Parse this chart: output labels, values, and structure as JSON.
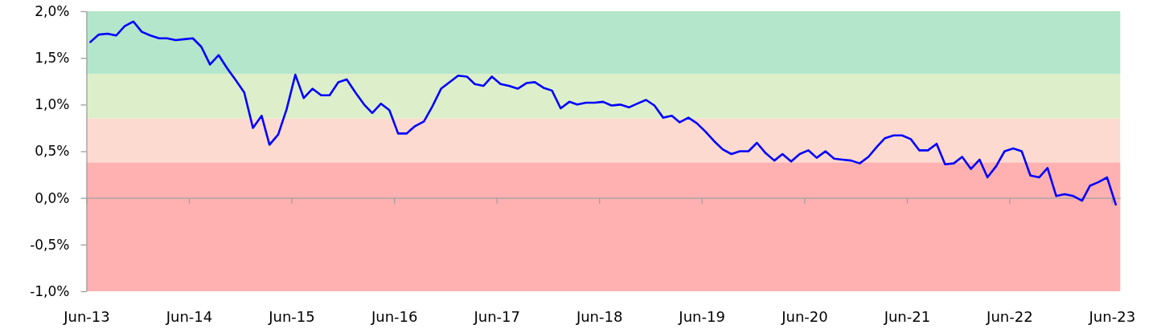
{
  "chart_data": {
    "type": "line",
    "x": [
      "2013-06-15",
      "2013-07-15",
      "2013-08-15",
      "2013-09-15",
      "2013-10-15",
      "2013-11-15",
      "2013-12-15",
      "2014-01-15",
      "2014-02-15",
      "2014-03-15",
      "2014-04-15",
      "2014-05-15",
      "2014-06-15",
      "2014-07-15",
      "2014-08-15",
      "2014-09-15",
      "2014-10-15",
      "2014-11-15",
      "2014-12-15",
      "2015-01-15",
      "2015-02-15",
      "2015-03-15",
      "2015-04-15",
      "2015-05-15",
      "2015-06-15",
      "2015-07-15",
      "2015-08-15",
      "2015-09-15",
      "2015-10-15",
      "2015-11-15",
      "2015-12-15",
      "2016-01-15",
      "2016-02-15",
      "2016-03-15",
      "2016-04-15",
      "2016-05-15",
      "2016-06-15",
      "2016-07-15",
      "2016-08-15",
      "2016-09-15",
      "2016-10-15",
      "2016-11-15",
      "2016-12-15",
      "2017-01-15",
      "2017-02-15",
      "2017-03-15",
      "2017-04-15",
      "2017-05-15",
      "2017-06-15",
      "2017-07-15",
      "2017-08-15",
      "2017-09-15",
      "2017-10-15",
      "2017-11-15",
      "2017-12-15",
      "2018-01-15",
      "2018-02-15",
      "2018-03-15",
      "2018-04-15",
      "2018-05-15",
      "2018-06-15",
      "2018-07-15",
      "2018-08-15",
      "2018-09-15",
      "2018-10-15",
      "2018-11-15",
      "2018-12-15",
      "2019-01-15",
      "2019-02-15",
      "2019-03-15",
      "2019-04-15",
      "2019-05-15",
      "2019-06-15",
      "2019-07-15",
      "2019-08-15",
      "2019-09-15",
      "2019-10-15",
      "2019-11-15",
      "2019-12-15",
      "2020-01-15",
      "2020-02-15",
      "2020-03-15",
      "2020-04-15",
      "2020-05-15",
      "2020-06-15",
      "2020-07-15",
      "2020-08-15",
      "2020-09-15",
      "2020-10-15",
      "2020-11-15",
      "2020-12-15",
      "2021-01-15",
      "2021-02-15",
      "2021-03-15",
      "2021-04-15",
      "2021-05-15",
      "2021-06-15",
      "2021-07-15",
      "2021-08-15",
      "2021-09-15",
      "2021-10-15",
      "2021-11-15",
      "2021-12-15",
      "2022-01-15",
      "2022-02-15",
      "2022-03-15",
      "2022-04-15",
      "2022-05-15",
      "2022-06-15",
      "2022-07-15",
      "2022-08-15",
      "2022-09-15",
      "2022-10-15",
      "2022-11-15",
      "2022-12-15",
      "2023-01-15",
      "2023-02-15",
      "2023-03-15",
      "2023-04-15",
      "2023-05-15",
      "2023-06-15"
    ],
    "series": [
      {
        "color": "#0000ff",
        "values": [
          1.67,
          1.75,
          1.76,
          1.74,
          1.84,
          1.89,
          1.78,
          1.74,
          1.71,
          1.71,
          1.69,
          1.7,
          1.71,
          1.62,
          1.43,
          1.53,
          1.39,
          1.26,
          1.13,
          0.75,
          0.88,
          0.57,
          0.68,
          0.95,
          1.32,
          1.07,
          1.17,
          1.1,
          1.1,
          1.24,
          1.27,
          1.13,
          1.0,
          0.91,
          1.01,
          0.94,
          0.69,
          0.69,
          0.77,
          0.82,
          0.98,
          1.17,
          1.24,
          1.31,
          1.3,
          1.22,
          1.2,
          1.3,
          1.22,
          1.2,
          1.17,
          1.23,
          1.24,
          1.18,
          1.15,
          0.96,
          1.03,
          1.0,
          1.02,
          1.02,
          1.03,
          0.99,
          1.0,
          0.97,
          1.01,
          1.05,
          0.99,
          0.86,
          0.88,
          0.81,
          0.86,
          0.8,
          0.71,
          0.61,
          0.52,
          0.47,
          0.5,
          0.5,
          0.59,
          0.48,
          0.4,
          0.47,
          0.39,
          0.47,
          0.51,
          0.43,
          0.5,
          0.42,
          0.41,
          0.4,
          0.37,
          0.44,
          0.55,
          0.64,
          0.67,
          0.67,
          0.63,
          0.51,
          0.51,
          0.58,
          0.36,
          0.37,
          0.44,
          0.31,
          0.41,
          0.22,
          0.34,
          0.5,
          0.53,
          0.5,
          0.24,
          0.22,
          0.32,
          0.02,
          0.04,
          0.02,
          -0.03,
          0.13,
          0.17,
          0.22,
          -0.07
        ]
      }
    ],
    "xlim": [
      "2013-06-01",
      "2023-07-01"
    ],
    "xticks": [
      {
        "value": "2013-06-01",
        "label": "Jun-13"
      },
      {
        "value": "2014-06-01",
        "label": "Jun-14"
      },
      {
        "value": "2015-06-01",
        "label": "Jun-15"
      },
      {
        "value": "2016-06-01",
        "label": "Jun-16"
      },
      {
        "value": "2017-06-01",
        "label": "Jun-17"
      },
      {
        "value": "2018-06-01",
        "label": "Jun-18"
      },
      {
        "value": "2019-06-01",
        "label": "Jun-19"
      },
      {
        "value": "2020-06-01",
        "label": "Jun-20"
      },
      {
        "value": "2021-06-01",
        "label": "Jun-21"
      },
      {
        "value": "2022-06-01",
        "label": "Jun-22"
      },
      {
        "value": "2023-06-01",
        "label": "Jun-23"
      }
    ],
    "ylim": [
      -1,
      2
    ],
    "yticks": [
      {
        "value": -1,
        "label": "-1,0%"
      },
      {
        "value": -0.5,
        "label": "-0,5%"
      },
      {
        "value": 0,
        "label": "0,0%"
      },
      {
        "value": 0.5,
        "label": "0,5%"
      },
      {
        "value": 1,
        "label": "1,0%"
      },
      {
        "value": 1.5,
        "label": "1,5%"
      },
      {
        "value": 2,
        "label": "2,0%"
      }
    ],
    "bands": [
      {
        "axis": "y",
        "from": 1.33,
        "to": 2,
        "color": "#b3e6ca"
      },
      {
        "axis": "y",
        "from": 0.85,
        "to": 1.33,
        "color": "#ddefca"
      },
      {
        "axis": "y",
        "from": 0.38,
        "to": 0.85,
        "color": "#fddad0"
      },
      {
        "axis": "y",
        "from": -1,
        "to": 0.38,
        "color": "#ffb1b1"
      }
    ]
  }
}
